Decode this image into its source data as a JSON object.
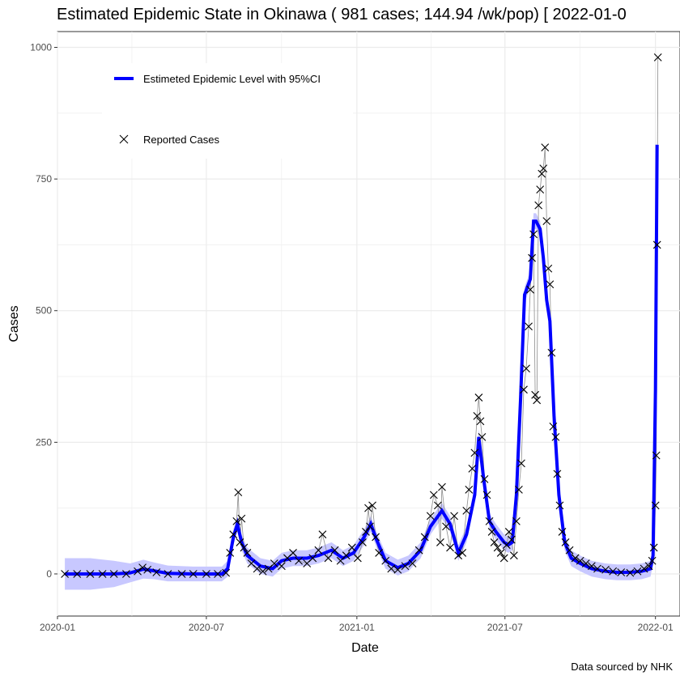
{
  "chart_data": {
    "type": "line",
    "title": "Estimated Epidemic State in Okinawa  ( 981 cases; 144.94 /wk/pop) [ 2022-01-0",
    "xlabel": "Date",
    "ylabel": "Cases",
    "caption": "Data sourced by NHK",
    "ylim": [
      -80,
      1030
    ],
    "xlim": [
      "2020-01-01",
      "2022-01-31"
    ],
    "y_ticks": [
      0,
      250,
      500,
      750,
      1000
    ],
    "y_tick_labels": [
      "0",
      "250",
      "500",
      "750",
      "1000"
    ],
    "x_ticks": [
      "2020-01-01",
      "2020-07-01",
      "2021-01-01",
      "2021-07-01",
      "2022-01-01"
    ],
    "x_tick_labels": [
      "2020-01",
      "2020-07",
      "2021-01",
      "2021-07",
      "2022-01"
    ],
    "grid": true,
    "legend_position": "top-left",
    "colors": {
      "estimate": "#0000ff",
      "ci_band": "#c8c8ff",
      "reported": "#000000",
      "reported_line": "#8c8c8c",
      "grid": "#ebebeb"
    },
    "series": [
      {
        "name": "Estimeted Epidemic Level with 95%CI",
        "type": "line",
        "x": [
          "2020-01-10",
          "2020-02-10",
          "2020-03-10",
          "2020-03-30",
          "2020-04-15",
          "2020-04-28",
          "2020-05-15",
          "2020-06-15",
          "2020-07-20",
          "2020-07-27",
          "2020-08-03",
          "2020-08-08",
          "2020-08-13",
          "2020-08-20",
          "2020-09-05",
          "2020-09-20",
          "2020-10-01",
          "2020-10-15",
          "2020-11-01",
          "2020-11-15",
          "2020-12-01",
          "2020-12-15",
          "2020-12-28",
          "2021-01-10",
          "2021-01-18",
          "2021-01-25",
          "2021-02-05",
          "2021-02-20",
          "2021-03-05",
          "2021-03-20",
          "2021-04-01",
          "2021-04-15",
          "2021-04-25",
          "2021-05-05",
          "2021-05-15",
          "2021-05-25",
          "2021-05-30",
          "2021-06-05",
          "2021-06-12",
          "2021-06-20",
          "2021-06-30",
          "2021-07-05",
          "2021-07-10",
          "2021-07-15",
          "2021-07-20",
          "2021-07-25",
          "2021-08-01",
          "2021-08-05",
          "2021-08-08",
          "2021-08-13",
          "2021-08-17",
          "2021-08-21",
          "2021-08-25",
          "2021-08-30",
          "2021-09-05",
          "2021-09-12",
          "2021-09-20",
          "2021-10-01",
          "2021-10-15",
          "2021-11-01",
          "2021-11-15",
          "2021-12-01",
          "2021-12-15",
          "2021-12-22",
          "2021-12-26",
          "2021-12-29",
          "2022-01-01",
          "2022-01-03"
        ],
        "y": [
          0,
          0,
          0,
          2,
          9,
          6,
          1,
          0,
          0,
          10,
          70,
          95,
          60,
          35,
          15,
          10,
          25,
          30,
          30,
          35,
          45,
          30,
          40,
          70,
          95,
          65,
          25,
          12,
          20,
          45,
          90,
          120,
          95,
          40,
          75,
          150,
          260,
          180,
          100,
          80,
          60,
          55,
          60,
          150,
          330,
          530,
          560,
          670,
          670,
          655,
          600,
          520,
          480,
          300,
          150,
          60,
          30,
          20,
          10,
          5,
          3,
          3,
          5,
          8,
          10,
          35,
          350,
          815
        ],
        "ci_half_width": [
          30,
          30,
          25,
          18,
          18,
          16,
          15,
          14,
          14,
          15,
          15,
          15,
          15,
          15,
          15,
          15,
          15,
          15,
          15,
          15,
          15,
          15,
          15,
          15,
          15,
          15,
          15,
          15,
          15,
          15,
          15,
          15,
          15,
          15,
          15,
          15,
          15,
          15,
          15,
          15,
          15,
          15,
          15,
          15,
          15,
          15,
          15,
          15,
          15,
          15,
          15,
          15,
          15,
          15,
          15,
          15,
          15,
          15,
          15,
          15,
          15,
          15,
          15,
          15,
          15,
          15,
          15,
          15
        ]
      },
      {
        "name": "Reported Cases",
        "type": "scatter",
        "x": [
          "2020-01-10",
          "2020-01-25",
          "2020-02-10",
          "2020-02-25",
          "2020-03-10",
          "2020-03-25",
          "2020-04-08",
          "2020-04-14",
          "2020-04-20",
          "2020-05-01",
          "2020-05-15",
          "2020-06-01",
          "2020-06-15",
          "2020-07-01",
          "2020-07-15",
          "2020-07-25",
          "2020-07-30",
          "2020-08-03",
          "2020-08-07",
          "2020-08-09",
          "2020-08-11",
          "2020-08-13",
          "2020-08-16",
          "2020-08-20",
          "2020-08-25",
          "2020-09-01",
          "2020-09-08",
          "2020-09-15",
          "2020-09-22",
          "2020-10-01",
          "2020-10-08",
          "2020-10-15",
          "2020-10-22",
          "2020-11-01",
          "2020-11-08",
          "2020-11-15",
          "2020-11-20",
          "2020-11-27",
          "2020-12-05",
          "2020-12-12",
          "2020-12-19",
          "2020-12-26",
          "2021-01-02",
          "2021-01-08",
          "2021-01-12",
          "2021-01-15",
          "2021-01-17",
          "2021-01-20",
          "2021-01-24",
          "2021-01-28",
          "2021-02-05",
          "2021-02-12",
          "2021-02-20",
          "2021-03-01",
          "2021-03-10",
          "2021-03-18",
          "2021-03-25",
          "2021-04-01",
          "2021-04-05",
          "2021-04-10",
          "2021-04-13",
          "2021-04-15",
          "2021-04-20",
          "2021-04-25",
          "2021-04-30",
          "2021-05-05",
          "2021-05-10",
          "2021-05-15",
          "2021-05-18",
          "2021-05-22",
          "2021-05-25",
          "2021-05-28",
          "2021-05-30",
          "2021-06-01",
          "2021-06-03",
          "2021-06-06",
          "2021-06-09",
          "2021-06-12",
          "2021-06-15",
          "2021-06-18",
          "2021-06-22",
          "2021-06-26",
          "2021-06-30",
          "2021-07-03",
          "2021-07-06",
          "2021-07-09",
          "2021-07-12",
          "2021-07-15",
          "2021-07-18",
          "2021-07-21",
          "2021-07-24",
          "2021-07-27",
          "2021-07-30",
          "2021-08-01",
          "2021-08-03",
          "2021-08-05",
          "2021-08-07",
          "2021-08-09",
          "2021-08-11",
          "2021-08-13",
          "2021-08-15",
          "2021-08-17",
          "2021-08-19",
          "2021-08-21",
          "2021-08-23",
          "2021-08-25",
          "2021-08-27",
          "2021-08-29",
          "2021-09-01",
          "2021-09-03",
          "2021-09-06",
          "2021-09-09",
          "2021-09-13",
          "2021-09-18",
          "2021-09-25",
          "2021-10-01",
          "2021-10-08",
          "2021-10-15",
          "2021-10-22",
          "2021-11-01",
          "2021-11-10",
          "2021-11-20",
          "2021-12-01",
          "2021-12-10",
          "2021-12-18",
          "2021-12-24",
          "2021-12-28",
          "2021-12-30",
          "2022-01-01",
          "2022-01-02",
          "2022-01-03",
          "2022-01-04"
        ],
        "y": [
          0,
          0,
          0,
          0,
          0,
          0,
          5,
          12,
          8,
          3,
          0,
          0,
          0,
          0,
          0,
          2,
          40,
          75,
          100,
          155,
          60,
          105,
          50,
          40,
          20,
          10,
          5,
          10,
          20,
          15,
          30,
          40,
          25,
          20,
          30,
          45,
          75,
          30,
          45,
          25,
          35,
          50,
          30,
          60,
          80,
          125,
          90,
          130,
          70,
          40,
          25,
          10,
          8,
          15,
          20,
          45,
          70,
          110,
          150,
          130,
          60,
          165,
          90,
          50,
          110,
          35,
          40,
          120,
          160,
          200,
          230,
          300,
          335,
          290,
          260,
          180,
          150,
          100,
          80,
          60,
          50,
          40,
          30,
          55,
          80,
          65,
          35,
          100,
          160,
          210,
          350,
          390,
          470,
          540,
          600,
          645,
          340,
          330,
          700,
          730,
          760,
          770,
          810,
          670,
          580,
          550,
          420,
          280,
          260,
          190,
          130,
          80,
          60,
          45,
          30,
          25,
          20,
          15,
          10,
          8,
          5,
          3,
          2,
          5,
          10,
          15,
          25,
          50,
          130,
          225,
          625,
          981
        ]
      }
    ]
  }
}
